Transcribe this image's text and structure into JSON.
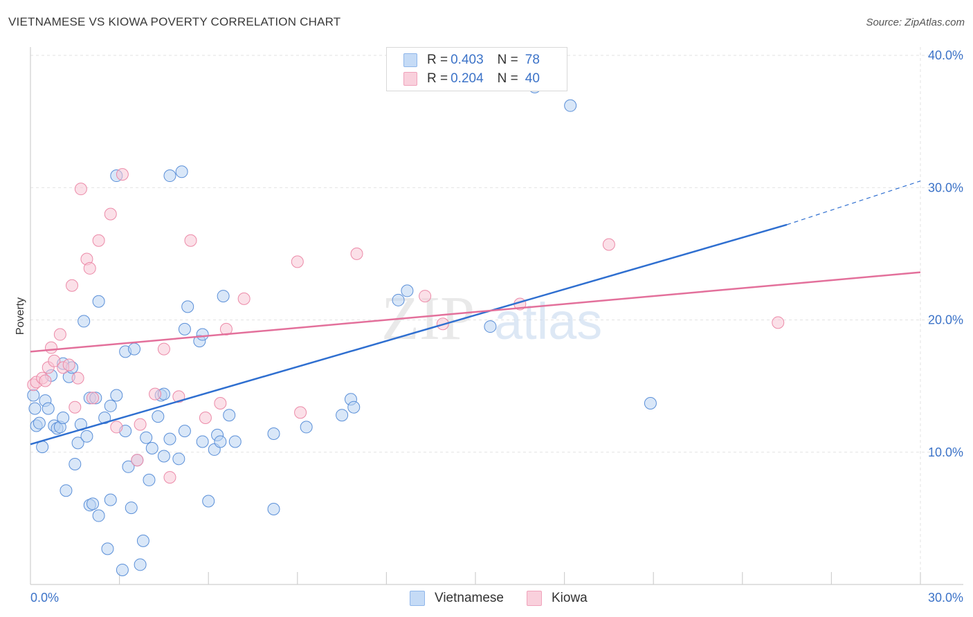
{
  "header": {
    "title": "VIETNAMESE VS KIOWA POVERTY CORRELATION CHART",
    "source": "Source: ZipAtlas.com"
  },
  "legend": {
    "rows": [
      {
        "r_label": "R = ",
        "r_value": "0.403",
        "n_label": "N = ",
        "n_value": "78",
        "color": "#8fb6ea",
        "fill": "#c5dbf6"
      },
      {
        "r_label": "R = ",
        "r_value": "0.204",
        "n_label": "N = ",
        "n_value": "40",
        "color": "#f0a2bb",
        "fill": "#f9d0dc"
      }
    ]
  },
  "bottom_legend": [
    "Vietnamese",
    "Kiowa"
  ],
  "watermark": {
    "zip": "ZIP",
    "atlas": "atlas"
  },
  "chart_data": {
    "type": "scatter",
    "title": "VIETNAMESE VS KIOWA POVERTY CORRELATION CHART",
    "ylabel": "Poverty",
    "xlabel": "",
    "xlim": [
      0,
      30
    ],
    "ylim": [
      0,
      40
    ],
    "x_ticks": [
      "0.0%",
      "30.0%"
    ],
    "y_ticks": [
      {
        "value": 10,
        "label": "10.0%"
      },
      {
        "value": 20,
        "label": "20.0%"
      },
      {
        "value": 30,
        "label": "30.0%"
      },
      {
        "value": 40,
        "label": "40.0%"
      }
    ],
    "grid": true,
    "legend_position": "top-center",
    "series": [
      {
        "name": "Vietnamese",
        "color": "#5a8fd8",
        "fill": "#b9d3f3",
        "line_color": "#2f6fd0",
        "trend": {
          "x0": 0,
          "y0": 10.6,
          "x1": 25.5,
          "y1": 27.2,
          "dash_to_x": 30,
          "dash_to_y": 30.5
        },
        "points": [
          [
            0.1,
            14.3
          ],
          [
            0.15,
            13.3
          ],
          [
            0.2,
            12.0
          ],
          [
            0.3,
            12.2
          ],
          [
            0.4,
            10.4
          ],
          [
            0.5,
            13.9
          ],
          [
            0.6,
            13.3
          ],
          [
            0.7,
            15.8
          ],
          [
            0.8,
            12.0
          ],
          [
            0.9,
            11.8
          ],
          [
            1.0,
            11.9
          ],
          [
            1.1,
            16.7
          ],
          [
            1.1,
            12.6
          ],
          [
            1.2,
            7.1
          ],
          [
            1.3,
            15.7
          ],
          [
            1.4,
            16.4
          ],
          [
            1.5,
            9.1
          ],
          [
            1.6,
            10.7
          ],
          [
            1.7,
            12.1
          ],
          [
            1.8,
            19.9
          ],
          [
            1.9,
            11.2
          ],
          [
            2.0,
            14.1
          ],
          [
            2.0,
            6.0
          ],
          [
            2.1,
            6.1
          ],
          [
            2.2,
            14.1
          ],
          [
            2.3,
            5.2
          ],
          [
            2.3,
            21.4
          ],
          [
            2.5,
            12.6
          ],
          [
            2.6,
            2.7
          ],
          [
            2.7,
            13.5
          ],
          [
            2.7,
            6.4
          ],
          [
            2.9,
            30.9
          ],
          [
            2.9,
            14.3
          ],
          [
            3.2,
            11.6
          ],
          [
            3.2,
            17.6
          ],
          [
            3.3,
            8.9
          ],
          [
            3.4,
            5.8
          ],
          [
            3.5,
            17.8
          ],
          [
            3.6,
            9.4
          ],
          [
            3.7,
            1.5
          ],
          [
            3.8,
            3.3
          ],
          [
            3.9,
            11.1
          ],
          [
            4.0,
            7.9
          ],
          [
            4.1,
            10.3
          ],
          [
            4.3,
            12.7
          ],
          [
            4.4,
            14.3
          ],
          [
            4.5,
            9.7
          ],
          [
            4.5,
            14.4
          ],
          [
            4.7,
            11.0
          ],
          [
            4.7,
            30.9
          ],
          [
            5.0,
            9.5
          ],
          [
            5.1,
            31.2
          ],
          [
            5.2,
            19.3
          ],
          [
            5.2,
            11.6
          ],
          [
            5.3,
            21.0
          ],
          [
            5.7,
            18.4
          ],
          [
            5.8,
            18.9
          ],
          [
            5.8,
            10.8
          ],
          [
            6.0,
            6.3
          ],
          [
            6.2,
            10.2
          ],
          [
            6.3,
            11.3
          ],
          [
            6.4,
            10.8
          ],
          [
            6.5,
            21.8
          ],
          [
            6.7,
            12.8
          ],
          [
            6.9,
            10.8
          ],
          [
            8.2,
            11.4
          ],
          [
            8.2,
            5.7
          ],
          [
            9.3,
            11.9
          ],
          [
            10.5,
            12.8
          ],
          [
            10.8,
            14.0
          ],
          [
            10.9,
            13.4
          ],
          [
            12.4,
            21.5
          ],
          [
            12.7,
            22.2
          ],
          [
            15.5,
            19.5
          ],
          [
            17.0,
            37.6
          ],
          [
            18.2,
            36.2
          ],
          [
            20.9,
            13.7
          ],
          [
            3.1,
            1.1
          ]
        ]
      },
      {
        "name": "Kiowa",
        "color": "#ec8aa8",
        "fill": "#f7c6d5",
        "line_color": "#e3709b",
        "trend": {
          "x0": 0,
          "y0": 17.6,
          "x1": 30,
          "y1": 23.6
        },
        "points": [
          [
            0.1,
            15.1
          ],
          [
            0.2,
            15.3
          ],
          [
            0.4,
            15.6
          ],
          [
            0.5,
            15.4
          ],
          [
            0.6,
            16.4
          ],
          [
            0.7,
            17.9
          ],
          [
            0.8,
            16.9
          ],
          [
            1.0,
            18.9
          ],
          [
            1.1,
            16.4
          ],
          [
            1.3,
            16.6
          ],
          [
            1.4,
            22.6
          ],
          [
            1.5,
            13.4
          ],
          [
            1.6,
            15.6
          ],
          [
            1.7,
            29.9
          ],
          [
            1.9,
            24.6
          ],
          [
            2.0,
            23.9
          ],
          [
            2.1,
            14.1
          ],
          [
            2.3,
            26.0
          ],
          [
            2.7,
            28.0
          ],
          [
            2.9,
            11.9
          ],
          [
            3.1,
            31.0
          ],
          [
            3.6,
            9.4
          ],
          [
            3.7,
            12.1
          ],
          [
            4.2,
            14.4
          ],
          [
            4.5,
            17.8
          ],
          [
            4.7,
            8.1
          ],
          [
            5.0,
            14.2
          ],
          [
            5.4,
            26.0
          ],
          [
            5.9,
            12.6
          ],
          [
            6.4,
            13.7
          ],
          [
            6.6,
            19.3
          ],
          [
            7.2,
            21.6
          ],
          [
            9.0,
            24.4
          ],
          [
            9.1,
            13.0
          ],
          [
            11.0,
            25.0
          ],
          [
            13.3,
            21.8
          ],
          [
            13.9,
            19.7
          ],
          [
            16.5,
            21.2
          ],
          [
            19.5,
            25.7
          ],
          [
            25.2,
            19.8
          ]
        ]
      }
    ]
  }
}
